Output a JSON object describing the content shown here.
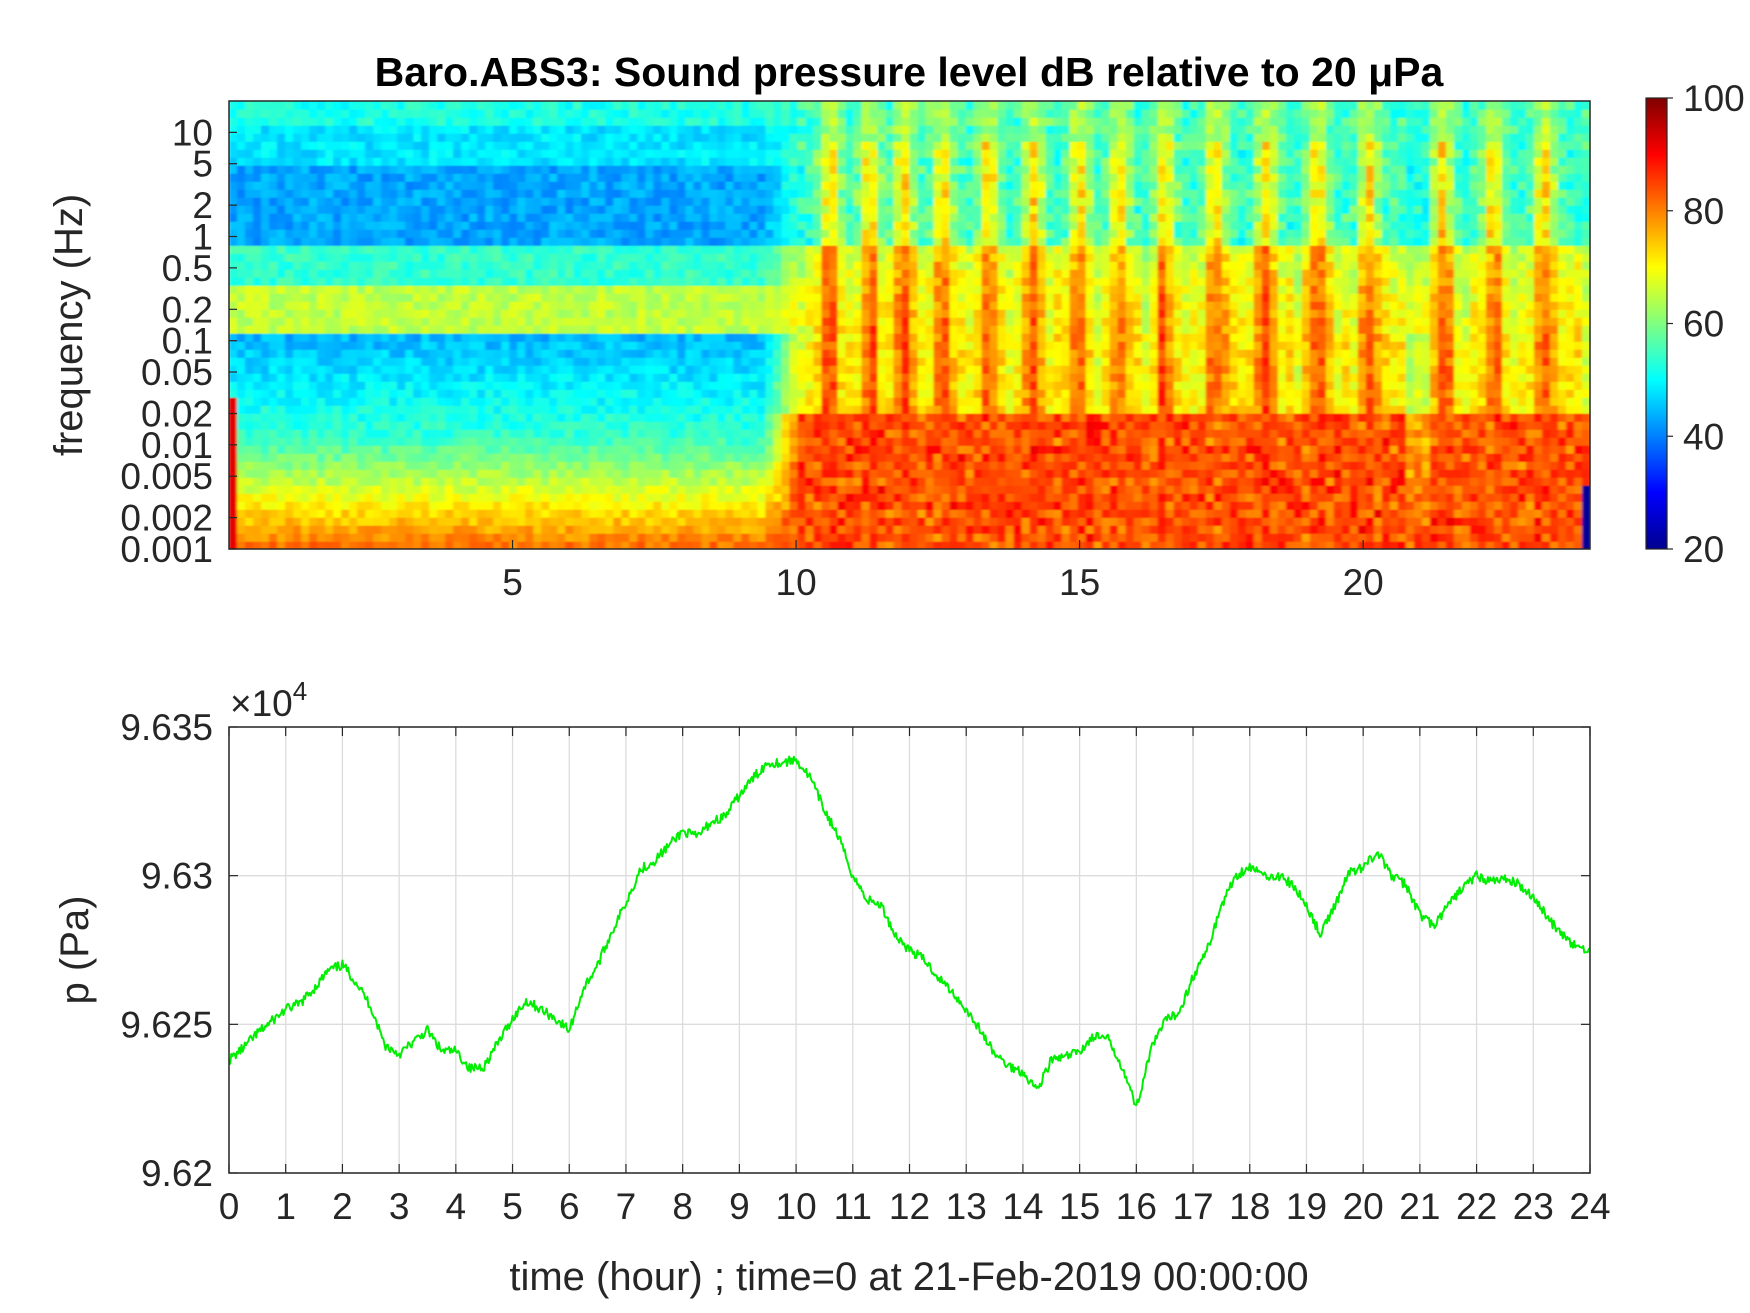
{
  "chart_data": [
    {
      "type": "heatmap",
      "title": "Baro.ABS3: Sound pressure level dB relative to 20 μPa",
      "xlabel": "",
      "ylabel": "frequency (Hz)",
      "xlim": [
        0,
        24
      ],
      "ylim": [
        0.001,
        20
      ],
      "y_scale": "log",
      "x_ticks": [
        "5",
        "10",
        "15",
        "20"
      ],
      "y_ticks": [
        "10",
        "5",
        "2",
        "1",
        "0.5",
        "0.2",
        "0.1",
        "0.05",
        "0.02",
        "0.01",
        "0.005",
        "0.002",
        "0.001"
      ],
      "colormap": "jet",
      "colorbar": {
        "range": [
          20,
          100
        ],
        "ticks": [
          "100",
          "80",
          "60",
          "40",
          "20"
        ]
      },
      "grid": false
    },
    {
      "type": "line",
      "title": "",
      "xlabel": "time (hour) ; time=0 at 21-Feb-2019 00:00:00",
      "ylabel": "p (Pa)",
      "xlim": [
        0,
        24
      ],
      "ylim": [
        96200,
        96350
      ],
      "y_exponent_label": "×10",
      "y_exponent_power": "4",
      "x_ticks": [
        "0",
        "1",
        "2",
        "3",
        "4",
        "5",
        "6",
        "7",
        "8",
        "9",
        "10",
        "11",
        "12",
        "13",
        "14",
        "15",
        "16",
        "17",
        "18",
        "19",
        "20",
        "21",
        "22",
        "23",
        "24"
      ],
      "y_ticks": [
        "9.635",
        "9.63",
        "9.625",
        "9.62"
      ],
      "grid": true,
      "line_color": "#00ee00",
      "series": [
        {
          "x": [
            0,
            0.25,
            0.5,
            0.75,
            1,
            1.25,
            1.5,
            1.75,
            2,
            2.25,
            2.5,
            2.75,
            3,
            3.25,
            3.5,
            3.75,
            4,
            4.25,
            4.5,
            4.75,
            5,
            5.25,
            5.5,
            5.75,
            6,
            6.25,
            6.5,
            6.75,
            7,
            7.25,
            7.5,
            7.75,
            8,
            8.25,
            8.5,
            8.75,
            9,
            9.25,
            9.5,
            9.75,
            10,
            10.25,
            10.5,
            10.75,
            11,
            11.25,
            11.5,
            11.75,
            12,
            12.25,
            12.5,
            12.75,
            13,
            13.25,
            13.5,
            13.75,
            14,
            14.25,
            14.5,
            14.75,
            15,
            15.25,
            15.5,
            15.75,
            16,
            16.25,
            16.5,
            16.75,
            17,
            17.25,
            17.5,
            17.75,
            18,
            18.25,
            18.5,
            18.75,
            19,
            19.25,
            19.5,
            19.75,
            20,
            20.25,
            20.5,
            20.75,
            21,
            21.25,
            21.5,
            21.75,
            22,
            22.25,
            22.5,
            22.75,
            23,
            23.25,
            23.5,
            23.75,
            24
          ],
          "y": [
            96238,
            96242,
            96247,
            96251,
            96255,
            96257,
            96262,
            96268,
            96270,
            96264,
            96256,
            96243,
            96240,
            96244,
            96248,
            96241,
            96241,
            96235,
            96236,
            96244,
            96252,
            96258,
            96255,
            96252,
            96248,
            96262,
            96270,
            96281,
            96291,
            96302,
            96305,
            96310,
            96315,
            96313,
            96318,
            96320,
            96327,
            96333,
            96338,
            96338,
            96339,
            96333,
            96322,
            96313,
            96300,
            96292,
            96290,
            96280,
            96275,
            96272,
            96266,
            96261,
            96255,
            96248,
            96240,
            96236,
            96234,
            96228,
            96238,
            96239,
            96241,
            96246,
            96245,
            96236,
            96222,
            96241,
            96251,
            96254,
            96266,
            96275,
            96290,
            96300,
            96303,
            96300,
            96300,
            96297,
            96290,
            96280,
            96290,
            96301,
            96303,
            96308,
            96300,
            96297,
            96287,
            96283,
            96290,
            96296,
            96300,
            96298,
            96299,
            96297,
            96293,
            96286,
            96280,
            96276,
            96275
          ]
        }
      ]
    }
  ]
}
